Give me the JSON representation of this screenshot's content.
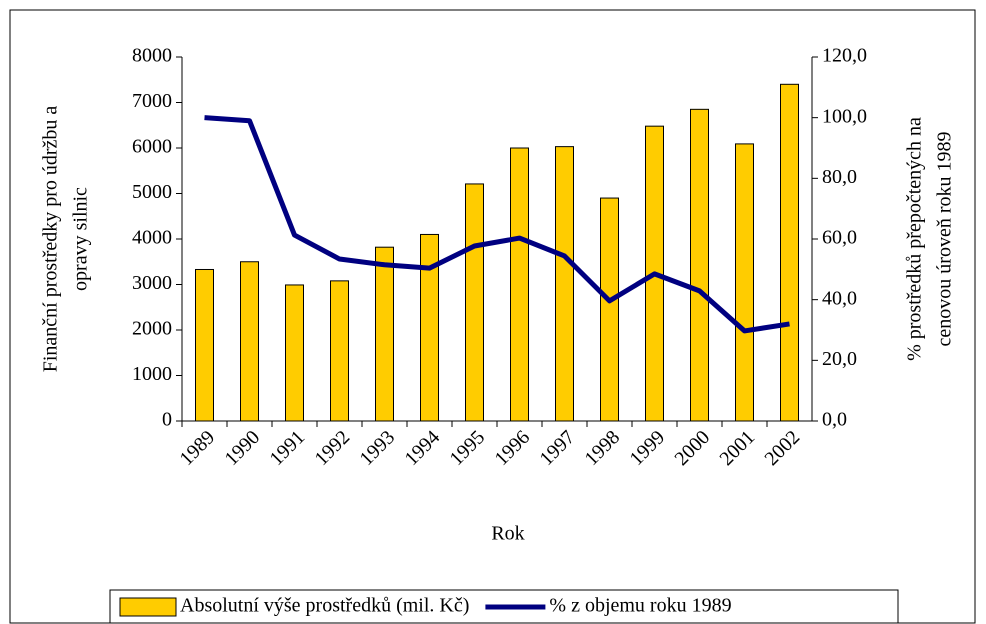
{
  "chart_data": {
    "type": "bar_line",
    "categories": [
      "1989",
      "1990",
      "1991",
      "1992",
      "1993",
      "1994",
      "1995",
      "1996",
      "1997",
      "1998",
      "1999",
      "2000",
      "2001",
      "2002"
    ],
    "series": [
      {
        "name": "Absolutní výše prostředků (mil. Kč)",
        "type": "bar",
        "color": "#ffcc00",
        "values": [
          3330,
          3500,
          2990,
          3080,
          3820,
          4100,
          5210,
          6000,
          6030,
          4900,
          6480,
          6850,
          6090,
          7400
        ]
      },
      {
        "name": "% z objemu roku 1989",
        "type": "line",
        "axis": "y2",
        "color": "#000080",
        "values": [
          100,
          99.0,
          61.3,
          53.4,
          51.5,
          50.4,
          57.7,
          60.3,
          54.4,
          39.6,
          48.5,
          42.9,
          29.7,
          32.0
        ]
      }
    ],
    "x_label": "Rok",
    "y_label": [
      "Finanční prostředky pro údržbu a",
      "opravy silnic"
    ],
    "y2_label": [
      "% prostředků přepočtených na",
      "cenovou úroveň roku 1989"
    ],
    "ylim": [
      0,
      8000
    ],
    "yticks": [
      0,
      1000,
      2000,
      3000,
      4000,
      5000,
      6000,
      7000,
      8000
    ],
    "y2lim": [
      0,
      120
    ],
    "y2ticks": [
      {
        "value": 0,
        "label": "0,0"
      },
      {
        "value": 20,
        "label": "20,0"
      },
      {
        "value": 40,
        "label": "40,0"
      },
      {
        "value": 60,
        "label": "60,0"
      },
      {
        "value": 80,
        "label": "80,0"
      },
      {
        "value": 100,
        "label": "100,0"
      },
      {
        "value": 120,
        "label": "120,0"
      }
    ],
    "legend": "bottom"
  }
}
